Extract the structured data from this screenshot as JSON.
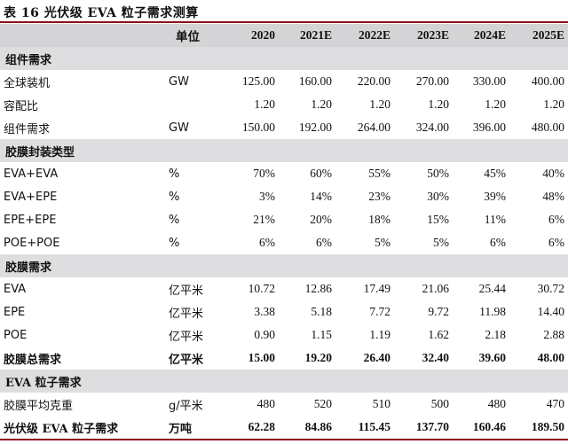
{
  "title": "表 16  光伏级 EVA 粒子需求测算",
  "header": {
    "label": "",
    "unit": "单位",
    "years": [
      "2020",
      "2021E",
      "2022E",
      "2023E",
      "2024E",
      "2025E"
    ]
  },
  "sections": [
    {
      "title": "组件需求",
      "rows": [
        {
          "label": "全球装机",
          "unit": "GW",
          "values": [
            "125.00",
            "160.00",
            "220.00",
            "270.00",
            "330.00",
            "400.00"
          ],
          "bold": false
        },
        {
          "label": "容配比",
          "unit": "",
          "values": [
            "1.20",
            "1.20",
            "1.20",
            "1.20",
            "1.20",
            "1.20"
          ],
          "bold": false
        },
        {
          "label": "组件需求",
          "unit": "GW",
          "values": [
            "150.00",
            "192.00",
            "264.00",
            "324.00",
            "396.00",
            "480.00"
          ],
          "bold": false
        }
      ]
    },
    {
      "title": "胶膜封装类型",
      "rows": [
        {
          "label": "EVA+EVA",
          "unit": "%",
          "values": [
            "70%",
            "60%",
            "55%",
            "50%",
            "45%",
            "40%"
          ],
          "bold": false
        },
        {
          "label": "EVA+EPE",
          "unit": "%",
          "values": [
            "3%",
            "14%",
            "23%",
            "30%",
            "39%",
            "48%"
          ],
          "bold": false
        },
        {
          "label": "EPE+EPE",
          "unit": "%",
          "values": [
            "21%",
            "20%",
            "18%",
            "15%",
            "11%",
            "6%"
          ],
          "bold": false
        },
        {
          "label": "POE+POE",
          "unit": "%",
          "values": [
            "6%",
            "6%",
            "5%",
            "5%",
            "6%",
            "6%"
          ],
          "bold": false
        }
      ]
    },
    {
      "title": "胶膜需求",
      "rows": [
        {
          "label": "EVA",
          "unit": "亿平米",
          "values": [
            "10.72",
            "12.86",
            "17.49",
            "21.06",
            "25.44",
            "30.72"
          ],
          "bold": false
        },
        {
          "label": "EPE",
          "unit": "亿平米",
          "values": [
            "3.38",
            "5.18",
            "7.72",
            "9.72",
            "11.98",
            "14.40"
          ],
          "bold": false
        },
        {
          "label": "POE",
          "unit": "亿平米",
          "values": [
            "0.90",
            "1.15",
            "1.19",
            "1.62",
            "2.18",
            "2.88"
          ],
          "bold": false
        },
        {
          "label": "胶膜总需求",
          "unit": "亿平米",
          "values": [
            "15.00",
            "19.20",
            "26.40",
            "32.40",
            "39.60",
            "48.00"
          ],
          "bold": true
        }
      ]
    },
    {
      "title": "EVA 粒子需求",
      "rows": [
        {
          "label": "胶膜平均克重",
          "unit": "g/平米",
          "values": [
            "480",
            "520",
            "510",
            "500",
            "480",
            "470"
          ],
          "bold": false
        },
        {
          "label": "光伏级 EVA 粒子需求",
          "unit": "万吨",
          "values": [
            "62.28",
            "84.86",
            "115.45",
            "137.70",
            "160.46",
            "189.50"
          ],
          "bold": true
        }
      ]
    }
  ]
}
